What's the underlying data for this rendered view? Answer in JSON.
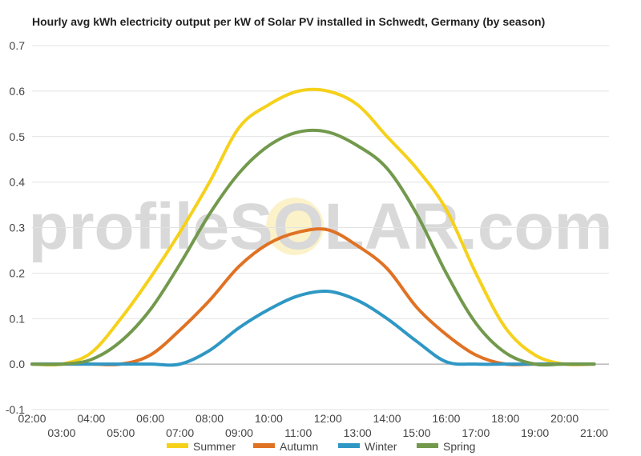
{
  "chart_data": {
    "type": "line",
    "title": "Hourly avg kWh electricity output per kW of Solar PV installed in Schwedt, Germany (by season)",
    "xlabel": "",
    "ylabel": "",
    "ylim": [
      -0.1,
      0.7
    ],
    "yticks": [
      "0.7",
      "0.6",
      "0.5",
      "0.4",
      "0.3",
      "0.2",
      "0.1",
      "0.0",
      "-0.1"
    ],
    "xlim": [
      2,
      21.5
    ],
    "xticks_upper": [
      "02:00",
      "04:00",
      "06:00",
      "08:00",
      "10:00",
      "12:00",
      "14:00",
      "16:00",
      "18:00",
      "20:00"
    ],
    "xticks_lower": [
      "03:00",
      "05:00",
      "07:00",
      "09:00",
      "11:00",
      "13:00",
      "15:00",
      "17:00",
      "19:00",
      "21:00"
    ],
    "grid": "horizontal",
    "legend_position": "bottom",
    "watermark": "profileSOLAR.com",
    "series": [
      {
        "name": "Summer",
        "color": "#f5d11b",
        "x": [
          2,
          3,
          4,
          5,
          6,
          7,
          8,
          9,
          10,
          11,
          12,
          13,
          14,
          15,
          16,
          17,
          18,
          19,
          20,
          21
        ],
        "values": [
          0.0,
          0.0,
          0.025,
          0.1,
          0.19,
          0.29,
          0.4,
          0.52,
          0.57,
          0.6,
          0.6,
          0.57,
          0.5,
          0.43,
          0.34,
          0.2,
          0.08,
          0.02,
          0.0,
          0.0
        ]
      },
      {
        "name": "Autumn",
        "color": "#e07224",
        "x": [
          2,
          3,
          4,
          5,
          6,
          7,
          8,
          9,
          10,
          11,
          12,
          13,
          14,
          15,
          16,
          17,
          18,
          19,
          20,
          21
        ],
        "values": [
          0.0,
          0.0,
          0.0,
          0.0,
          0.02,
          0.075,
          0.14,
          0.215,
          0.265,
          0.29,
          0.295,
          0.26,
          0.21,
          0.125,
          0.065,
          0.02,
          0.0,
          0.0,
          0.0,
          0.0
        ]
      },
      {
        "name": "Winter",
        "color": "#2f97c4",
        "x": [
          2,
          3,
          4,
          5,
          6,
          7,
          8,
          9,
          10,
          11,
          12,
          13,
          14,
          15,
          16,
          17,
          18,
          19,
          20,
          21
        ],
        "values": [
          0.0,
          0.0,
          0.0,
          0.0,
          0.0,
          0.0,
          0.03,
          0.08,
          0.12,
          0.15,
          0.16,
          0.14,
          0.1,
          0.05,
          0.005,
          0.0,
          0.0,
          0.0,
          0.0,
          0.0
        ]
      },
      {
        "name": "Spring",
        "color": "#72994c",
        "x": [
          2,
          3,
          4,
          5,
          6,
          7,
          8,
          9,
          10,
          11,
          12,
          13,
          14,
          15,
          16,
          17,
          18,
          19,
          20,
          21
        ],
        "values": [
          0.0,
          0.0,
          0.01,
          0.05,
          0.12,
          0.22,
          0.33,
          0.42,
          0.48,
          0.51,
          0.51,
          0.48,
          0.43,
          0.33,
          0.2,
          0.09,
          0.025,
          0.0,
          0.0,
          0.0
        ]
      }
    ]
  }
}
